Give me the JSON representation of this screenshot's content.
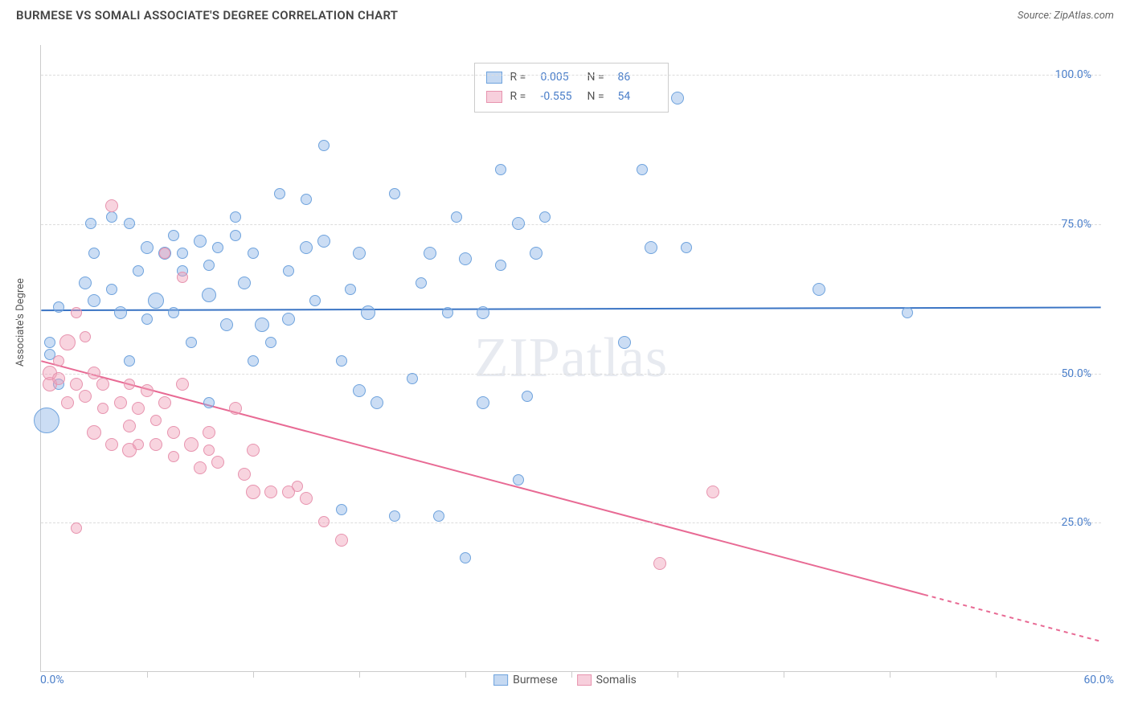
{
  "header": {
    "title": "BURMESE VS SOMALI ASSOCIATE'S DEGREE CORRELATION CHART",
    "source": "Source: ZipAtlas.com"
  },
  "watermark": "ZIPatlas",
  "chart": {
    "type": "scatter",
    "y_axis_label": "Associate's Degree",
    "xlim": [
      0,
      60
    ],
    "ylim": [
      0,
      105
    ],
    "x_min_label": "0.0%",
    "x_max_label": "60.0%",
    "y_ticks": [
      {
        "value": 25,
        "label": "25.0%"
      },
      {
        "value": 50,
        "label": "50.0%"
      },
      {
        "value": 75,
        "label": "75.0%"
      },
      {
        "value": 100,
        "label": "100.0%"
      }
    ],
    "x_tick_positions": [
      6,
      12,
      18,
      24,
      30,
      36,
      42,
      48,
      54
    ],
    "grid_color": "#dddddd",
    "axis_color": "#cccccc",
    "background_color": "#ffffff",
    "series": [
      {
        "name": "Burmese",
        "fill_color": "rgba(140,180,230,0.45)",
        "stroke_color": "#6fa3dd",
        "trend": {
          "y_start": 60.5,
          "y_end": 61,
          "color": "#3a74c4",
          "width": 2
        },
        "r_value": "0.005",
        "n_value": "86",
        "points": [
          {
            "x": 0.5,
            "y": 53,
            "r": 7
          },
          {
            "x": 0.5,
            "y": 55,
            "r": 7
          },
          {
            "x": 0.3,
            "y": 42,
            "r": 16
          },
          {
            "x": 1,
            "y": 61,
            "r": 7
          },
          {
            "x": 1,
            "y": 48,
            "r": 7
          },
          {
            "x": 2.5,
            "y": 65,
            "r": 8
          },
          {
            "x": 2.8,
            "y": 75,
            "r": 7
          },
          {
            "x": 3,
            "y": 70,
            "r": 7
          },
          {
            "x": 3,
            "y": 62,
            "r": 8
          },
          {
            "x": 4,
            "y": 76,
            "r": 7
          },
          {
            "x": 4,
            "y": 64,
            "r": 7
          },
          {
            "x": 4.5,
            "y": 60,
            "r": 8
          },
          {
            "x": 5,
            "y": 75,
            "r": 7
          },
          {
            "x": 5,
            "y": 52,
            "r": 7
          },
          {
            "x": 5.5,
            "y": 67,
            "r": 7
          },
          {
            "x": 6,
            "y": 71,
            "r": 8
          },
          {
            "x": 6,
            "y": 59,
            "r": 7
          },
          {
            "x": 6.5,
            "y": 62,
            "r": 10
          },
          {
            "x": 7,
            "y": 70,
            "r": 8
          },
          {
            "x": 7.5,
            "y": 73,
            "r": 7
          },
          {
            "x": 7.5,
            "y": 60,
            "r": 7
          },
          {
            "x": 8,
            "y": 67,
            "r": 7
          },
          {
            "x": 8,
            "y": 70,
            "r": 7
          },
          {
            "x": 8.5,
            "y": 55,
            "r": 7
          },
          {
            "x": 9,
            "y": 72,
            "r": 8
          },
          {
            "x": 9.5,
            "y": 68,
            "r": 7
          },
          {
            "x": 9.5,
            "y": 63,
            "r": 9
          },
          {
            "x": 9.5,
            "y": 45,
            "r": 7
          },
          {
            "x": 10,
            "y": 71,
            "r": 7
          },
          {
            "x": 10.5,
            "y": 58,
            "r": 8
          },
          {
            "x": 11,
            "y": 76,
            "r": 7
          },
          {
            "x": 11,
            "y": 73,
            "r": 7
          },
          {
            "x": 11.5,
            "y": 65,
            "r": 8
          },
          {
            "x": 12,
            "y": 70,
            "r": 7
          },
          {
            "x": 12,
            "y": 52,
            "r": 7
          },
          {
            "x": 12.5,
            "y": 58,
            "r": 9
          },
          {
            "x": 13,
            "y": 55,
            "r": 7
          },
          {
            "x": 13.5,
            "y": 80,
            "r": 7
          },
          {
            "x": 14,
            "y": 67,
            "r": 7
          },
          {
            "x": 14,
            "y": 59,
            "r": 8
          },
          {
            "x": 15,
            "y": 79,
            "r": 7
          },
          {
            "x": 15,
            "y": 71,
            "r": 8
          },
          {
            "x": 15.5,
            "y": 62,
            "r": 7
          },
          {
            "x": 16,
            "y": 88,
            "r": 7
          },
          {
            "x": 16,
            "y": 72,
            "r": 8
          },
          {
            "x": 17,
            "y": 52,
            "r": 7
          },
          {
            "x": 17,
            "y": 27,
            "r": 7
          },
          {
            "x": 17.5,
            "y": 64,
            "r": 7
          },
          {
            "x": 18,
            "y": 70,
            "r": 8
          },
          {
            "x": 18,
            "y": 47,
            "r": 8
          },
          {
            "x": 18.5,
            "y": 60,
            "r": 9
          },
          {
            "x": 19,
            "y": 45,
            "r": 8
          },
          {
            "x": 20,
            "y": 80,
            "r": 7
          },
          {
            "x": 20,
            "y": 26,
            "r": 7
          },
          {
            "x": 21,
            "y": 49,
            "r": 7
          },
          {
            "x": 21.5,
            "y": 65,
            "r": 7
          },
          {
            "x": 22,
            "y": 70,
            "r": 8
          },
          {
            "x": 22.5,
            "y": 26,
            "r": 7
          },
          {
            "x": 23,
            "y": 60,
            "r": 7
          },
          {
            "x": 23.5,
            "y": 76,
            "r": 7
          },
          {
            "x": 24,
            "y": 19,
            "r": 7
          },
          {
            "x": 24,
            "y": 69,
            "r": 8
          },
          {
            "x": 25,
            "y": 60,
            "r": 8
          },
          {
            "x": 25,
            "y": 45,
            "r": 8
          },
          {
            "x": 26,
            "y": 68,
            "r": 7
          },
          {
            "x": 26,
            "y": 84,
            "r": 7
          },
          {
            "x": 27,
            "y": 75,
            "r": 8
          },
          {
            "x": 27,
            "y": 32,
            "r": 7
          },
          {
            "x": 27.5,
            "y": 46,
            "r": 7
          },
          {
            "x": 28,
            "y": 70,
            "r": 8
          },
          {
            "x": 28.5,
            "y": 76,
            "r": 7
          },
          {
            "x": 33,
            "y": 55,
            "r": 8
          },
          {
            "x": 34,
            "y": 84,
            "r": 7
          },
          {
            "x": 34.5,
            "y": 71,
            "r": 8
          },
          {
            "x": 36,
            "y": 96,
            "r": 8
          },
          {
            "x": 36.5,
            "y": 71,
            "r": 7
          },
          {
            "x": 44,
            "y": 64,
            "r": 8
          },
          {
            "x": 49,
            "y": 60,
            "r": 7
          }
        ]
      },
      {
        "name": "Somalis",
        "fill_color": "rgba(240,160,185,0.45)",
        "stroke_color": "#e794af",
        "trend": {
          "y_start": 52,
          "y_end": 5,
          "color": "#e86a94",
          "width": 2,
          "dash_from_x": 50
        },
        "r_value": "-0.555",
        "n_value": "54",
        "points": [
          {
            "x": 0.5,
            "y": 48,
            "r": 9
          },
          {
            "x": 0.5,
            "y": 50,
            "r": 9
          },
          {
            "x": 1,
            "y": 49,
            "r": 8
          },
          {
            "x": 1,
            "y": 52,
            "r": 7
          },
          {
            "x": 1.5,
            "y": 55,
            "r": 10
          },
          {
            "x": 1.5,
            "y": 45,
            "r": 8
          },
          {
            "x": 2,
            "y": 60,
            "r": 7
          },
          {
            "x": 2,
            "y": 48,
            "r": 8
          },
          {
            "x": 2,
            "y": 24,
            "r": 7
          },
          {
            "x": 2.5,
            "y": 56,
            "r": 7
          },
          {
            "x": 2.5,
            "y": 46,
            "r": 8
          },
          {
            "x": 3,
            "y": 40,
            "r": 9
          },
          {
            "x": 3,
            "y": 50,
            "r": 8
          },
          {
            "x": 3.5,
            "y": 48,
            "r": 8
          },
          {
            "x": 3.5,
            "y": 44,
            "r": 7
          },
          {
            "x": 4,
            "y": 78,
            "r": 8
          },
          {
            "x": 4,
            "y": 38,
            "r": 8
          },
          {
            "x": 4.5,
            "y": 45,
            "r": 8
          },
          {
            "x": 5,
            "y": 41,
            "r": 8
          },
          {
            "x": 5,
            "y": 48,
            "r": 7
          },
          {
            "x": 5,
            "y": 37,
            "r": 9
          },
          {
            "x": 5.5,
            "y": 44,
            "r": 8
          },
          {
            "x": 5.5,
            "y": 38,
            "r": 7
          },
          {
            "x": 6,
            "y": 47,
            "r": 8
          },
          {
            "x": 6.5,
            "y": 42,
            "r": 7
          },
          {
            "x": 6.5,
            "y": 38,
            "r": 8
          },
          {
            "x": 7,
            "y": 70,
            "r": 7
          },
          {
            "x": 7,
            "y": 45,
            "r": 8
          },
          {
            "x": 7.5,
            "y": 40,
            "r": 8
          },
          {
            "x": 7.5,
            "y": 36,
            "r": 7
          },
          {
            "x": 8,
            "y": 66,
            "r": 7
          },
          {
            "x": 8,
            "y": 48,
            "r": 8
          },
          {
            "x": 8.5,
            "y": 38,
            "r": 9
          },
          {
            "x": 9,
            "y": 34,
            "r": 8
          },
          {
            "x": 9.5,
            "y": 40,
            "r": 8
          },
          {
            "x": 9.5,
            "y": 37,
            "r": 7
          },
          {
            "x": 10,
            "y": 35,
            "r": 8
          },
          {
            "x": 11,
            "y": 44,
            "r": 8
          },
          {
            "x": 11.5,
            "y": 33,
            "r": 8
          },
          {
            "x": 12,
            "y": 37,
            "r": 8
          },
          {
            "x": 12,
            "y": 30,
            "r": 9
          },
          {
            "x": 13,
            "y": 30,
            "r": 8
          },
          {
            "x": 14,
            "y": 30,
            "r": 8
          },
          {
            "x": 14.5,
            "y": 31,
            "r": 7
          },
          {
            "x": 15,
            "y": 29,
            "r": 8
          },
          {
            "x": 16,
            "y": 25,
            "r": 7
          },
          {
            "x": 17,
            "y": 22,
            "r": 8
          },
          {
            "x": 35,
            "y": 18,
            "r": 8
          },
          {
            "x": 38,
            "y": 30,
            "r": 8
          }
        ]
      }
    ]
  },
  "top_legend": {
    "rows": [
      {
        "swatch_fill": "rgba(140,180,230,0.5)",
        "swatch_stroke": "#6fa3dd",
        "r_label": "R =",
        "r_val": "0.005",
        "n_label": "N =",
        "n_val": "86"
      },
      {
        "swatch_fill": "rgba(240,160,185,0.5)",
        "swatch_stroke": "#e794af",
        "r_label": "R =",
        "r_val": "-0.555",
        "n_label": "N =",
        "n_val": "54"
      }
    ]
  },
  "bottom_legend": {
    "items": [
      {
        "swatch_fill": "rgba(140,180,230,0.5)",
        "swatch_stroke": "#6fa3dd",
        "label": "Burmese"
      },
      {
        "swatch_fill": "rgba(240,160,185,0.5)",
        "swatch_stroke": "#e794af",
        "label": "Somalis"
      }
    ]
  }
}
